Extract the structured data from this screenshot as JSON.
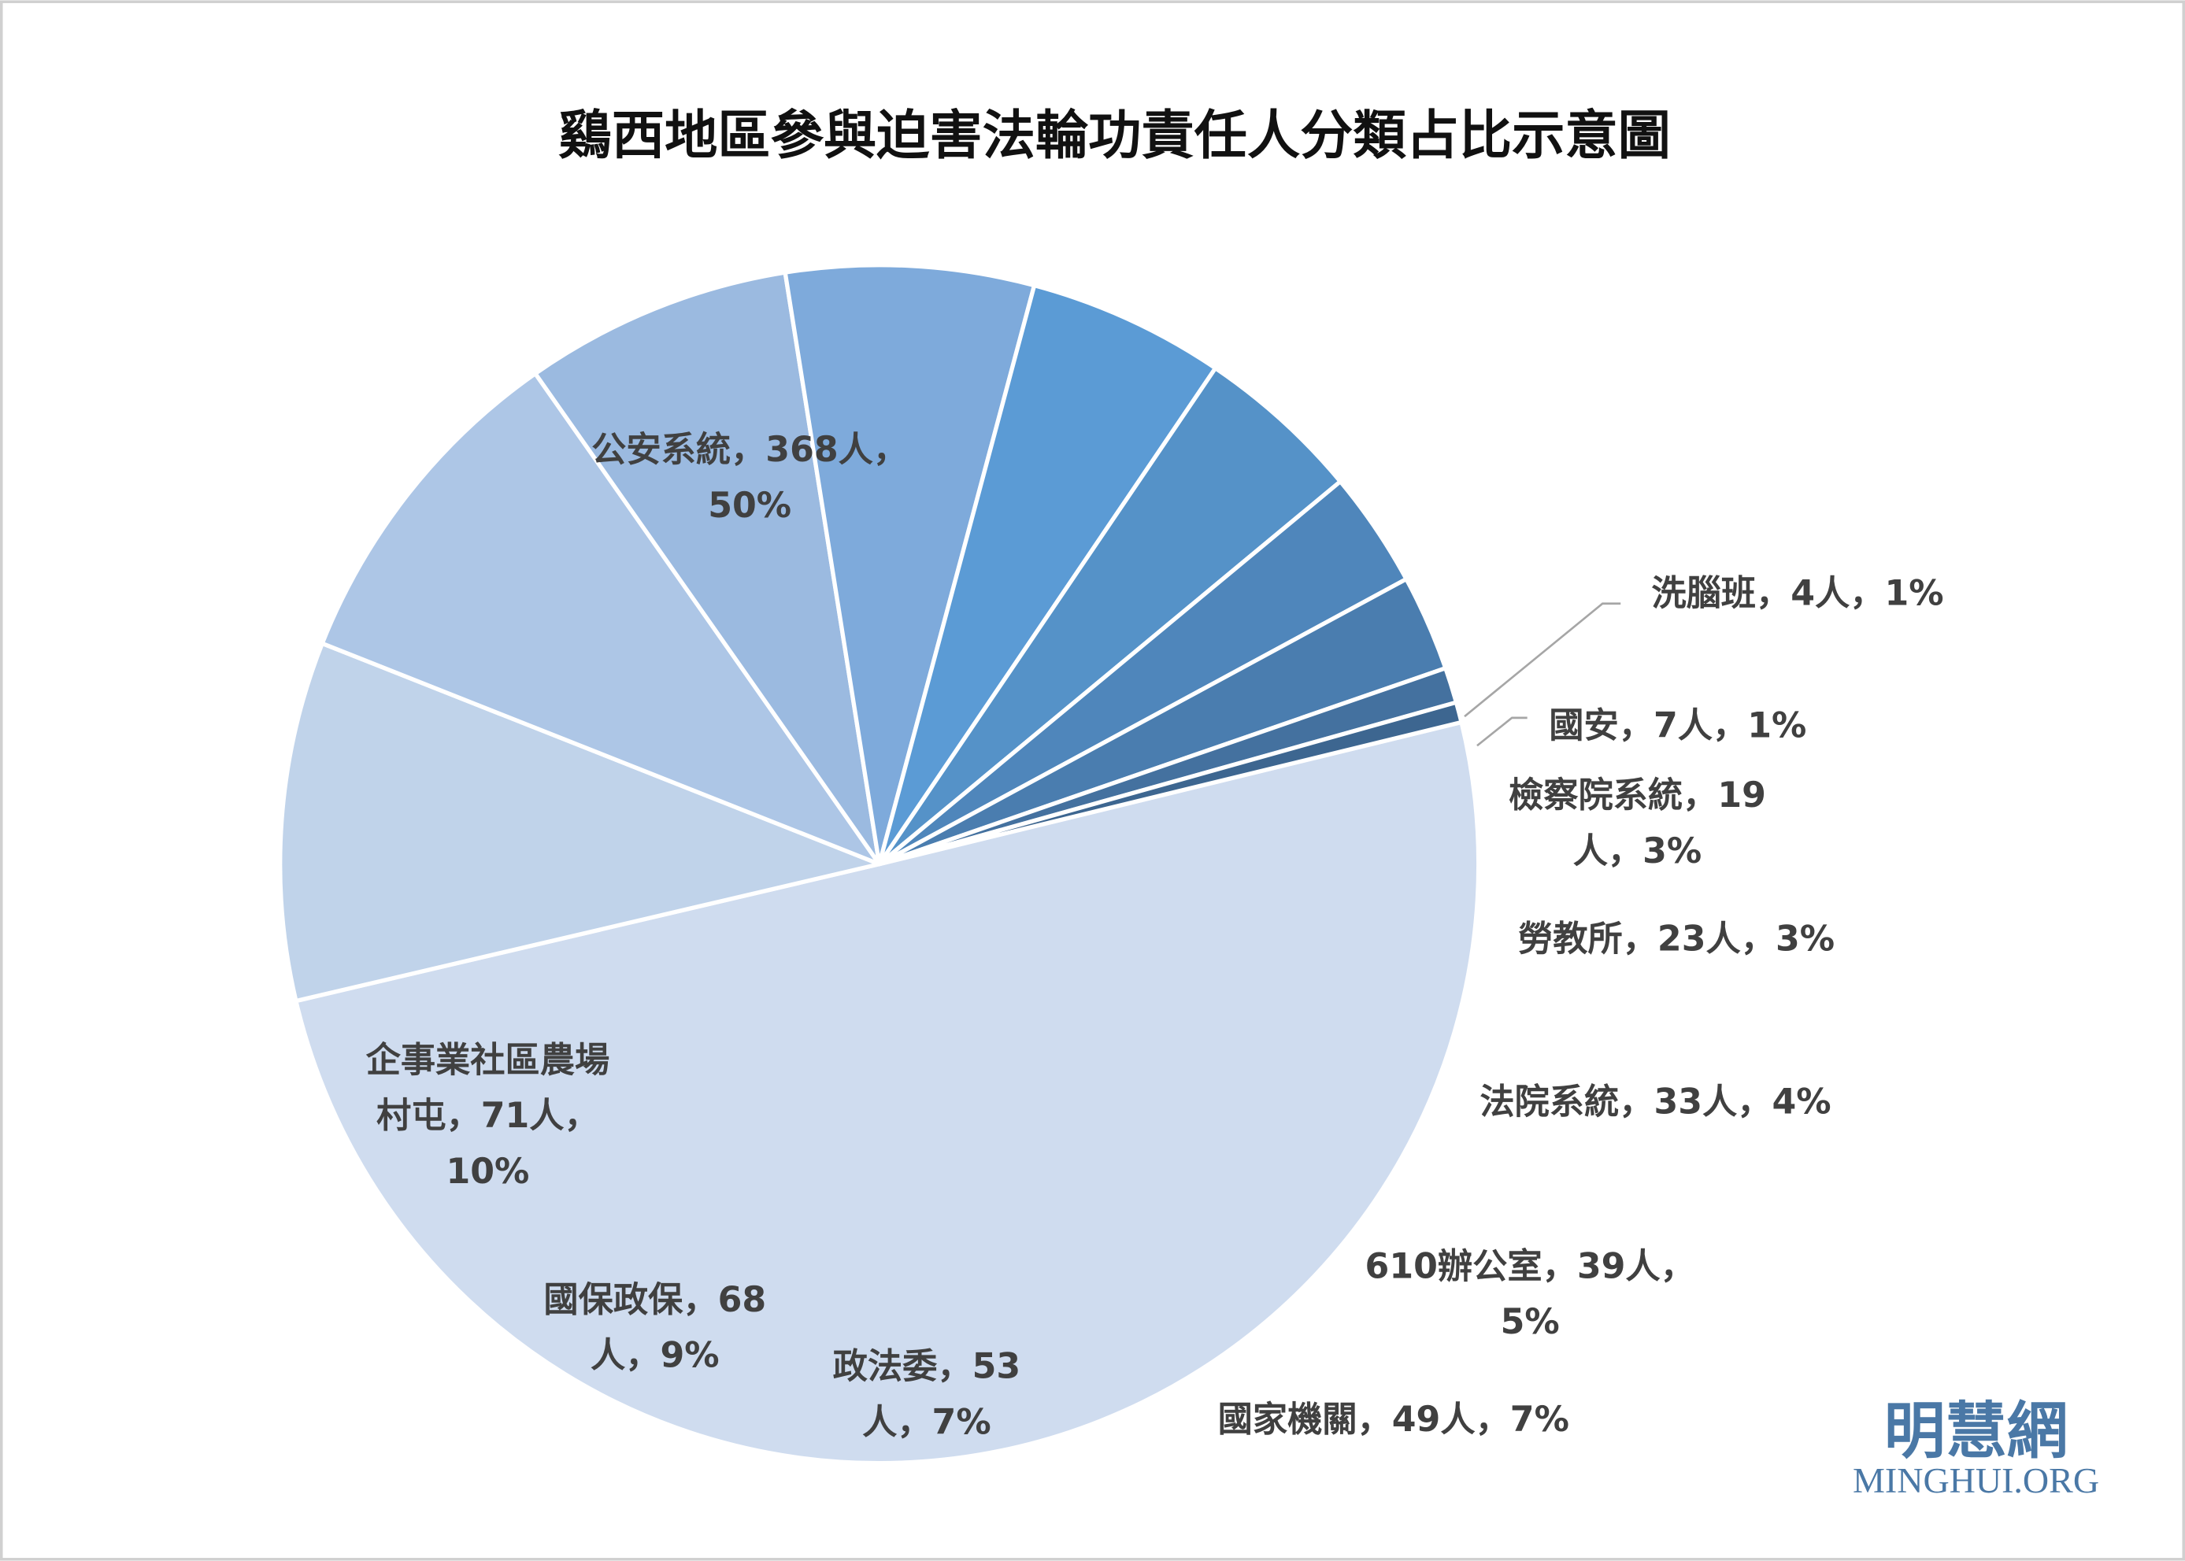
{
  "chart_data": {
    "type": "pie",
    "title": "鷄西地區參與迫害法輪功責任人分類占比示意圖",
    "unit": "人",
    "categories": [
      "公安系統",
      "企事業社區農場村屯",
      "國保政保",
      "政法委",
      "國家機關",
      "610辦公室",
      "法院系統",
      "勞教所",
      "檢察院系統",
      "國安",
      "洗腦班"
    ],
    "values": [
      368,
      71,
      68,
      53,
      49,
      39,
      33,
      23,
      19,
      7,
      4
    ],
    "percents": [
      "50%",
      "10%",
      "9%",
      "7%",
      "7%",
      "5%",
      "4%",
      "3%",
      "3%",
      "1%",
      "1%"
    ],
    "colors": [
      "#cfdcef",
      "#c0d3ea",
      "#adc6e6",
      "#9bbae0",
      "#7eaadb",
      "#5b9bd5",
      "#5592c8",
      "#4f86bb",
      "#4a7daf",
      "#44719f",
      "#3d6690"
    ],
    "data_labels": [
      [
        "公安系統，368人，",
        "50%"
      ],
      [
        "企事業社區農場",
        "村屯，71人，",
        "10%"
      ],
      [
        "國保政保，68",
        "人，9%"
      ],
      [
        "政法委，53",
        "人，7%"
      ],
      [
        "國家機關，49人，7%"
      ],
      [
        "610辦公室，39人，",
        "5%"
      ],
      [
        "法院系統，33人，4%"
      ],
      [
        "勞教所，23人，3%"
      ],
      [
        "檢察院系統，19",
        "人，3%"
      ],
      [
        "國安，7人，1%"
      ],
      [
        "洗腦班，4人，1%"
      ]
    ],
    "order": "clockwise",
    "legend": "none"
  },
  "watermark": {
    "chinese": "明慧網",
    "english": "MINGHUI.ORG"
  }
}
